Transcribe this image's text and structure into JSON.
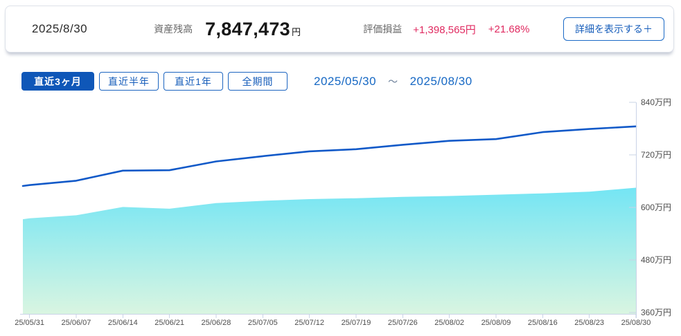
{
  "header": {
    "date": "2025/8/30",
    "balance_label": "資産残高",
    "balance_value": "7,847,473",
    "balance_unit": "円",
    "pnl_label": "評価損益",
    "pnl_amount": "+1,398,565円",
    "pnl_percent": "+21.68%",
    "detail_button": "詳細を表示する＋"
  },
  "controls": {
    "tabs": [
      {
        "label": "直近3ヶ月",
        "selected": true
      },
      {
        "label": "直近半年",
        "selected": false
      },
      {
        "label": "直近1年",
        "selected": false
      },
      {
        "label": "全期間",
        "selected": false
      }
    ],
    "range_start": "2025/05/30",
    "range_separator": "～",
    "range_end": "2025/08/30"
  },
  "colors": {
    "accent_blue": "#0f57b8",
    "link_blue": "#1668c4",
    "pnl_pink": "#e02a60",
    "line_blue": "#1159c8",
    "area_top": "#74e5f4",
    "area_bottom": "#d9f5e1",
    "axis": "#c9d3e6",
    "tick_text": "#4d4d4d"
  },
  "chart_data": {
    "type": "line",
    "x_unit": "date",
    "x_day_max": 92,
    "x_days": [
      0,
      1,
      8,
      15,
      22,
      29,
      36,
      43,
      50,
      57,
      64,
      71,
      78,
      85,
      92
    ],
    "x_dates": [
      "25/05/30",
      "25/05/31",
      "25/06/07",
      "25/06/14",
      "25/06/21",
      "25/06/28",
      "25/07/05",
      "25/07/12",
      "25/07/19",
      "25/07/26",
      "25/08/02",
      "25/08/09",
      "25/08/16",
      "25/08/23",
      "25/08/30"
    ],
    "x_tick_labels": [
      "25/05/31",
      "25/06/07",
      "25/06/14",
      "25/06/21",
      "25/06/28",
      "25/07/05",
      "25/07/12",
      "25/07/19",
      "25/07/26",
      "25/08/02",
      "25/08/09",
      "25/08/16",
      "25/08/23",
      "25/08/30"
    ],
    "x_tick_days": [
      1,
      8,
      15,
      22,
      29,
      36,
      43,
      50,
      57,
      64,
      71,
      78,
      85,
      92
    ],
    "y_unit": "万円",
    "ylim": [
      360,
      840
    ],
    "y_ticks": [
      {
        "value": 840,
        "label": "840万円"
      },
      {
        "value": 720,
        "label": "720万円"
      },
      {
        "value": 600,
        "label": "600万円"
      },
      {
        "value": 480,
        "label": "480万円"
      },
      {
        "value": 360,
        "label": "360万円"
      }
    ],
    "grid": false,
    "legend": false,
    "series": [
      {
        "id": "asset-balance-line",
        "kind": "line",
        "values": [
          649,
          651,
          661,
          684,
          685,
          705,
          717,
          728,
          733,
          743,
          752,
          756,
          772,
          779,
          785
        ]
      },
      {
        "id": "invested-area",
        "kind": "area",
        "values": [
          573,
          575,
          582,
          601,
          597,
          610,
          615,
          619,
          621,
          624,
          626,
          629,
          632,
          636,
          645
        ]
      }
    ]
  }
}
